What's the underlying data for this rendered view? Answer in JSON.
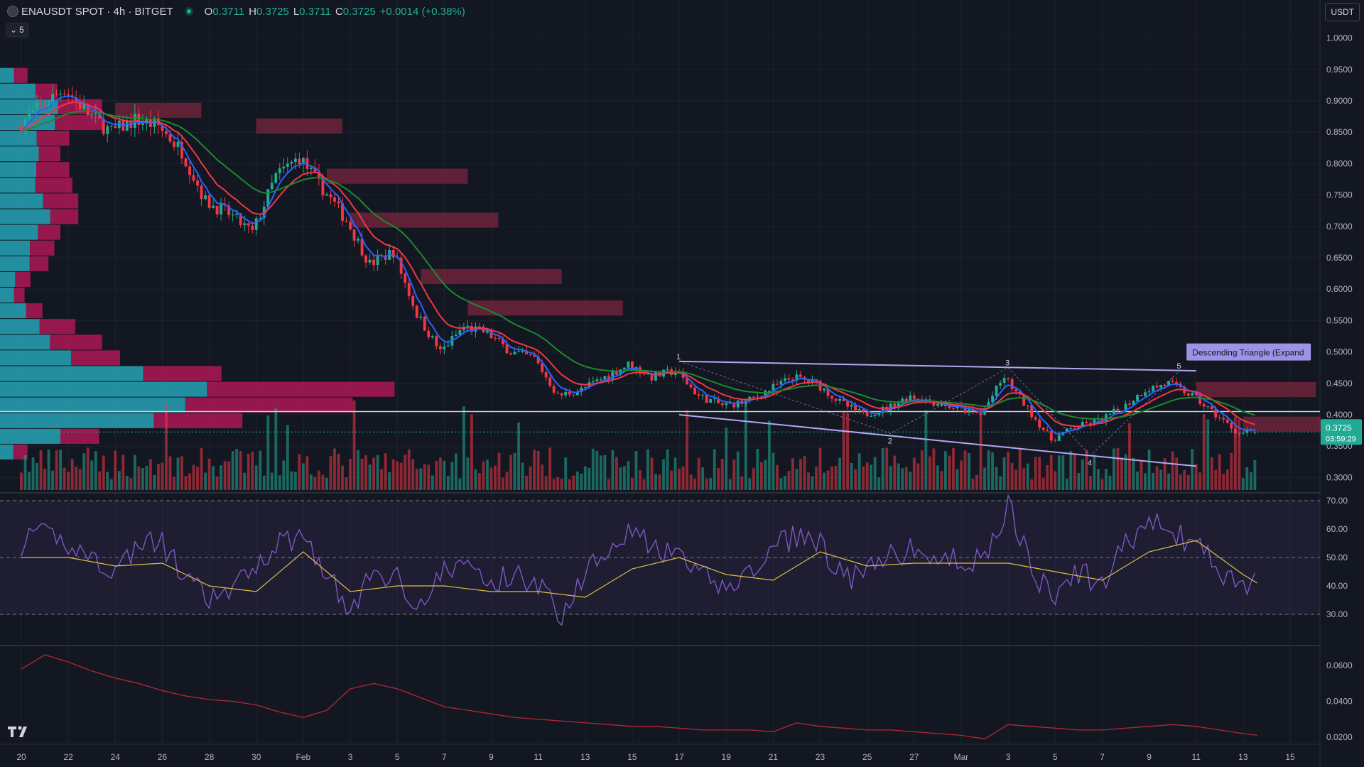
{
  "header": {
    "title": "ENAUSDT SPOT · 4h · BITGET",
    "open_label": "O",
    "open": "0.3711",
    "high_label": "H",
    "high": "0.3725",
    "low_label": "L",
    "low": "0.3711",
    "close_label": "C",
    "close": "0.3725",
    "change": "+0.0014 (+0.38%)",
    "collapse_label": "5",
    "currency": "USDT"
  },
  "colors": {
    "background": "#131722",
    "up": "#22ab94",
    "down": "#f23645",
    "ema_fast": "#2962ff",
    "ema_mid": "#f23645",
    "ema_slow": "#1b8a2e",
    "pattern": "#b2a7f0",
    "rsi": "#7e57c2",
    "rsi_ma": "#e0c040",
    "lower": "#b22833",
    "vp_up": "#26a3b5",
    "vp_down": "#c2185b"
  },
  "chart_data": [
    {
      "type": "candlestick",
      "symbol": "ENAUSDT",
      "timeframe": "4h",
      "exchange": "BITGET",
      "ylim": [
        0.28,
        1.02
      ],
      "price_ticks": [
        "1.0000",
        "0.9500",
        "0.9000",
        "0.8500",
        "0.8000",
        "0.7500",
        "0.7000",
        "0.6500",
        "0.6000",
        "0.5500",
        "0.5000",
        "0.4500",
        "0.4000",
        "0.3500",
        "0.3000"
      ],
      "x_ticks": [
        "20",
        "22",
        "24",
        "26",
        "28",
        "30",
        "Feb",
        "3",
        "5",
        "7",
        "9",
        "11",
        "13",
        "15",
        "17",
        "19",
        "21",
        "23",
        "25",
        "27",
        "Mar",
        "3",
        "5",
        "7",
        "9",
        "11",
        "13",
        "15"
      ],
      "x_tick_days": [
        0,
        2,
        4,
        6,
        8,
        10,
        12,
        14,
        16,
        18,
        20,
        22,
        24,
        26,
        28,
        30,
        32,
        34,
        36,
        38,
        40,
        42,
        44,
        46,
        48,
        50,
        52,
        54
      ],
      "last_day": 52.6,
      "price_path": [
        [
          0,
          0.86
        ],
        [
          1,
          0.89
        ],
        [
          2,
          0.92
        ],
        [
          3,
          0.88
        ],
        [
          4,
          0.85
        ],
        [
          5,
          0.87
        ],
        [
          6,
          0.86
        ],
        [
          7,
          0.82
        ],
        [
          8,
          0.74
        ],
        [
          9,
          0.72
        ],
        [
          10,
          0.69
        ],
        [
          11,
          0.78
        ],
        [
          12,
          0.81
        ],
        [
          13,
          0.76
        ],
        [
          14,
          0.71
        ],
        [
          15,
          0.64
        ],
        [
          16,
          0.66
        ],
        [
          17,
          0.56
        ],
        [
          18,
          0.5
        ],
        [
          19,
          0.54
        ],
        [
          20,
          0.53
        ],
        [
          21,
          0.5
        ],
        [
          22,
          0.49
        ],
        [
          23,
          0.43
        ],
        [
          24,
          0.44
        ],
        [
          25,
          0.46
        ],
        [
          26,
          0.48
        ],
        [
          27,
          0.46
        ],
        [
          28,
          0.47
        ],
        [
          29,
          0.43
        ],
        [
          30,
          0.415
        ],
        [
          31,
          0.42
        ],
        [
          32,
          0.44
        ],
        [
          33,
          0.46
        ],
        [
          34,
          0.45
        ],
        [
          35,
          0.42
        ],
        [
          36,
          0.4
        ],
        [
          37,
          0.41
        ],
        [
          38,
          0.43
        ],
        [
          39,
          0.42
        ],
        [
          40,
          0.41
        ],
        [
          41,
          0.4
        ],
        [
          42,
          0.46
        ],
        [
          43,
          0.41
        ],
        [
          44,
          0.36
        ],
        [
          45,
          0.38
        ],
        [
          46,
          0.39
        ],
        [
          47,
          0.41
        ],
        [
          48,
          0.44
        ],
        [
          49,
          0.45
        ],
        [
          50,
          0.43
        ],
        [
          51,
          0.4
        ],
        [
          52,
          0.37
        ],
        [
          52.6,
          0.3725
        ]
      ],
      "horizontal_level": 0.405,
      "last_price": "0.3725",
      "countdown": "03:59:29",
      "pattern": {
        "label": "Descending Triangle (Expand",
        "upper": [
          [
            28,
            0.485
          ],
          [
            50,
            0.47
          ]
        ],
        "lower": [
          [
            28,
            0.4
          ],
          [
            50,
            0.318
          ]
        ],
        "pivots": [
          {
            "label": "1",
            "day": 28,
            "price": 0.485
          },
          {
            "label": "2",
            "day": 37,
            "price": 0.37
          },
          {
            "label": "3",
            "day": 42,
            "price": 0.475
          },
          {
            "label": "4",
            "day": 45.5,
            "price": 0.335
          },
          {
            "label": "5",
            "day": 49.3,
            "price": 0.47
          }
        ]
      },
      "series": [
        {
          "indicator": "ema_fast"
        },
        {
          "indicator": "ema_mid"
        },
        {
          "indicator": "ema_slow"
        }
      ]
    },
    {
      "type": "line",
      "panel": "rsi",
      "ylim": [
        20,
        72
      ],
      "ticks": [
        "70.00",
        "60.00",
        "50.00",
        "40.00",
        "30.00"
      ],
      "bands": [
        30,
        50,
        70
      ],
      "rsi_path": [
        [
          0,
          55
        ],
        [
          1,
          58
        ],
        [
          2,
          55
        ],
        [
          3,
          50
        ],
        [
          4,
          45
        ],
        [
          5,
          55
        ],
        [
          6,
          55
        ],
        [
          7,
          42
        ],
        [
          8,
          35
        ],
        [
          9,
          38
        ],
        [
          10,
          48
        ],
        [
          11,
          55
        ],
        [
          12,
          58
        ],
        [
          13,
          45
        ],
        [
          14,
          30
        ],
        [
          15,
          45
        ],
        [
          16,
          43
        ],
        [
          17,
          33
        ],
        [
          18,
          45
        ],
        [
          19,
          48
        ],
        [
          20,
          40
        ],
        [
          21,
          45
        ],
        [
          22,
          40
        ],
        [
          23,
          30
        ],
        [
          24,
          45
        ],
        [
          25,
          55
        ],
        [
          26,
          60
        ],
        [
          27,
          52
        ],
        [
          28,
          50
        ],
        [
          29,
          43
        ],
        [
          30,
          40
        ],
        [
          31,
          44
        ],
        [
          32,
          53
        ],
        [
          33,
          58
        ],
        [
          34,
          55
        ],
        [
          35,
          42
        ],
        [
          36,
          45
        ],
        [
          37,
          50
        ],
        [
          38,
          53
        ],
        [
          39,
          48
        ],
        [
          40,
          50
        ],
        [
          41,
          48
        ],
        [
          42,
          70
        ],
        [
          43,
          45
        ],
        [
          44,
          35
        ],
        [
          45,
          45
        ],
        [
          46,
          40
        ],
        [
          47,
          55
        ],
        [
          48,
          63
        ],
        [
          49,
          58
        ],
        [
          50,
          55
        ],
        [
          51,
          45
        ],
        [
          52,
          40
        ],
        [
          52.6,
          42
        ]
      ],
      "ma_path": [
        [
          0,
          50
        ],
        [
          2,
          50
        ],
        [
          4,
          47
        ],
        [
          6,
          48
        ],
        [
          8,
          40
        ],
        [
          10,
          38
        ],
        [
          12,
          52
        ],
        [
          14,
          38
        ],
        [
          16,
          40
        ],
        [
          18,
          40
        ],
        [
          20,
          38
        ],
        [
          22,
          38
        ],
        [
          24,
          36
        ],
        [
          26,
          46
        ],
        [
          28,
          50
        ],
        [
          30,
          44
        ],
        [
          32,
          42
        ],
        [
          34,
          52
        ],
        [
          36,
          47
        ],
        [
          38,
          48
        ],
        [
          40,
          48
        ],
        [
          42,
          48
        ],
        [
          44,
          45
        ],
        [
          46,
          42
        ],
        [
          48,
          52
        ],
        [
          50,
          56
        ],
        [
          52,
          44
        ],
        [
          52.6,
          41
        ]
      ]
    },
    {
      "type": "line",
      "panel": "lower",
      "ylim": [
        0.016,
        0.07
      ],
      "ticks": [
        "0.0600",
        "0.0400",
        "0.0200"
      ],
      "path": [
        [
          0,
          0.058
        ],
        [
          1,
          0.066
        ],
        [
          2,
          0.062
        ],
        [
          3,
          0.057
        ],
        [
          4,
          0.053
        ],
        [
          5,
          0.05
        ],
        [
          6,
          0.046
        ],
        [
          7,
          0.043
        ],
        [
          8,
          0.041
        ],
        [
          9,
          0.04
        ],
        [
          10,
          0.038
        ],
        [
          11,
          0.034
        ],
        [
          12,
          0.031
        ],
        [
          13,
          0.035
        ],
        [
          14,
          0.047
        ],
        [
          15,
          0.05
        ],
        [
          16,
          0.047
        ],
        [
          17,
          0.042
        ],
        [
          18,
          0.037
        ],
        [
          19,
          0.035
        ],
        [
          20,
          0.033
        ],
        [
          21,
          0.031
        ],
        [
          22,
          0.03
        ],
        [
          23,
          0.029
        ],
        [
          24,
          0.028
        ],
        [
          25,
          0.027
        ],
        [
          26,
          0.026
        ],
        [
          27,
          0.026
        ],
        [
          28,
          0.025
        ],
        [
          29,
          0.024
        ],
        [
          30,
          0.024
        ],
        [
          31,
          0.024
        ],
        [
          32,
          0.023
        ],
        [
          33,
          0.028
        ],
        [
          34,
          0.026
        ],
        [
          35,
          0.025
        ],
        [
          36,
          0.024
        ],
        [
          37,
          0.024
        ],
        [
          38,
          0.023
        ],
        [
          39,
          0.022
        ],
        [
          40,
          0.021
        ],
        [
          41,
          0.019
        ],
        [
          42,
          0.027
        ],
        [
          43,
          0.026
        ],
        [
          44,
          0.025
        ],
        [
          45,
          0.024
        ],
        [
          46,
          0.024
        ],
        [
          47,
          0.025
        ],
        [
          48,
          0.026
        ],
        [
          49,
          0.027
        ],
        [
          50,
          0.026
        ],
        [
          51,
          0.024
        ],
        [
          52,
          0.022
        ],
        [
          52.6,
          0.021
        ]
      ]
    }
  ]
}
